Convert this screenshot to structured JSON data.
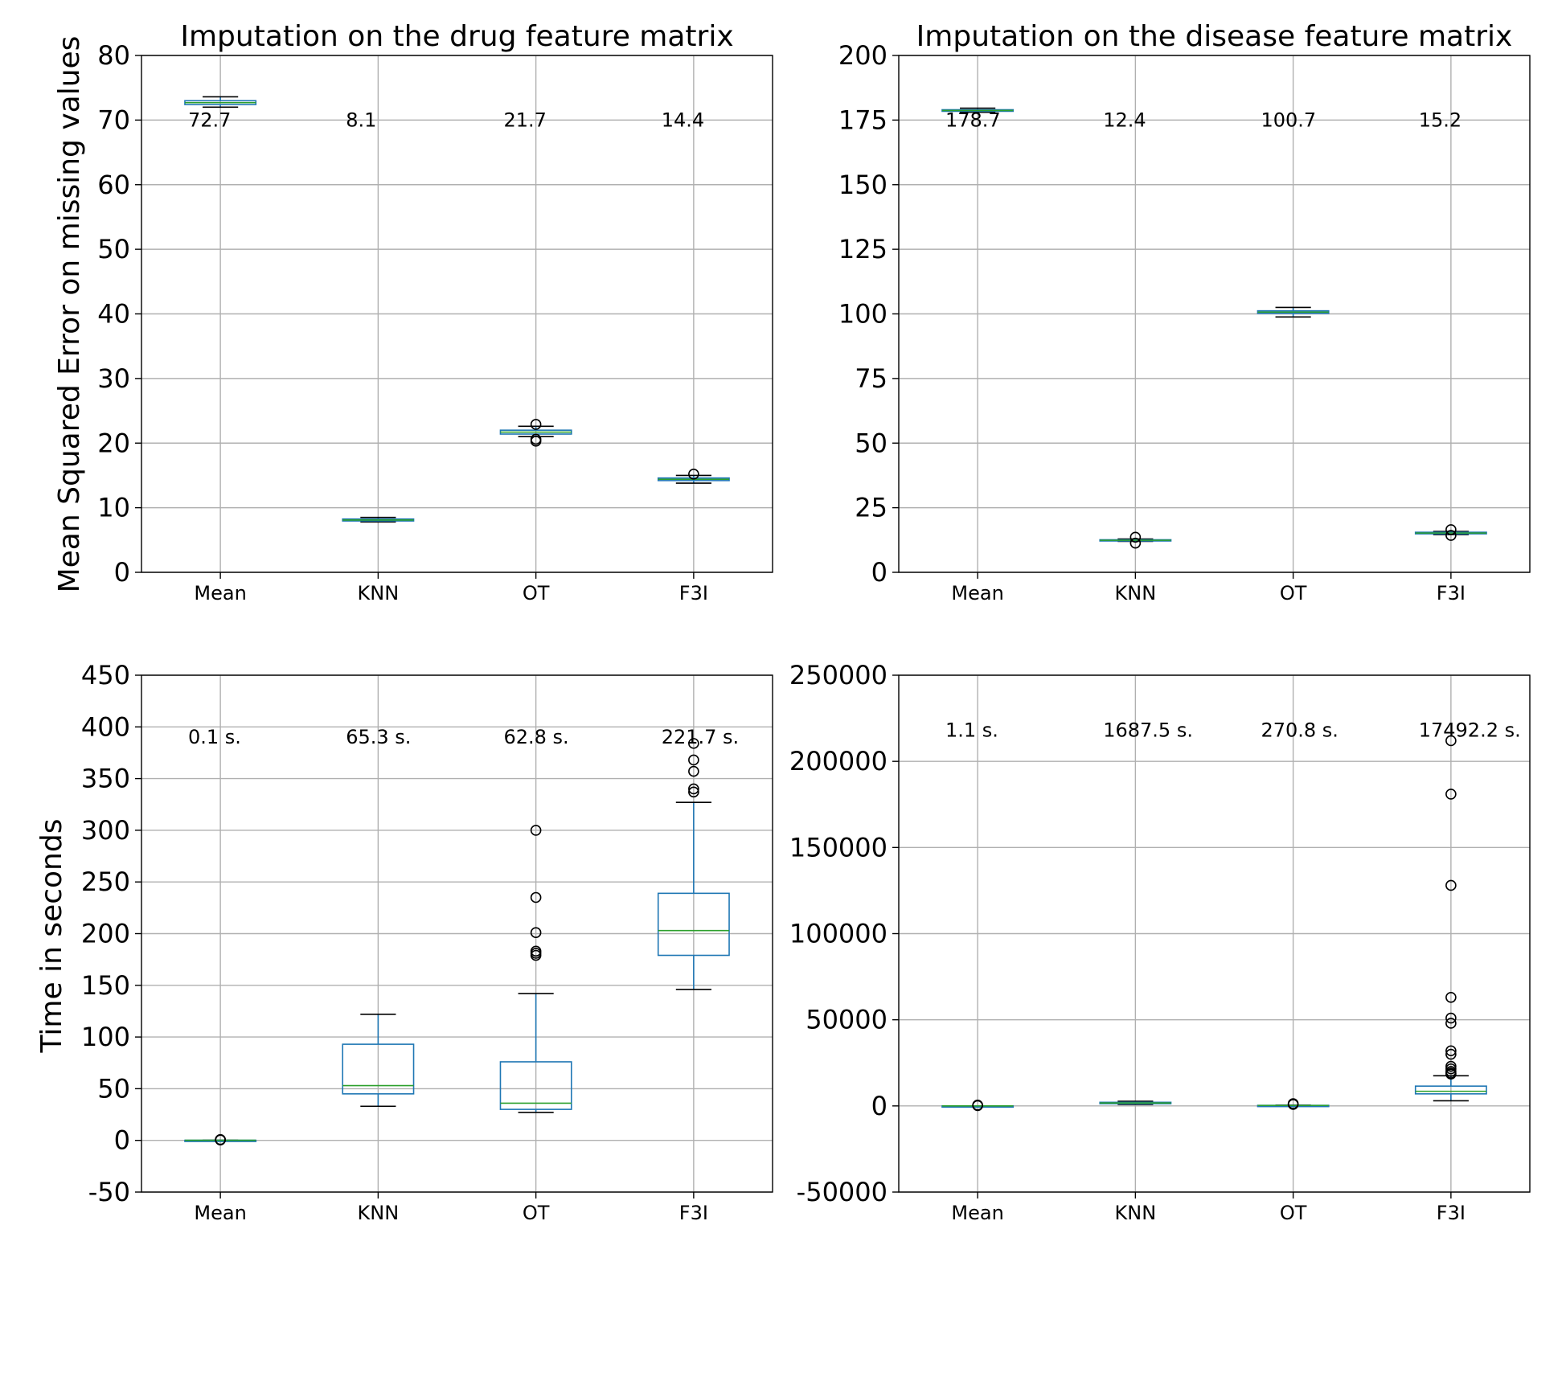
{
  "figure": {
    "ylabel_top": "Mean Squared Error on missing values",
    "ylabel_bottom": "Time in seconds"
  },
  "chart_data": [
    {
      "type": "box",
      "title": "Imputation on the drug feature matrix",
      "xlabel": "",
      "ylabel": "Mean Squared Error on missing values",
      "categories": [
        "Mean",
        "KNN",
        "OT",
        "F3I"
      ],
      "ylim": [
        0,
        80
      ],
      "yticks": [
        0,
        10,
        20,
        30,
        40,
        50,
        60,
        70,
        80
      ],
      "ytick_labels": [
        "0",
        "10",
        "20",
        "30",
        "40",
        "50",
        "60",
        "70",
        "80"
      ],
      "grid": true,
      "annotation_y": 70,
      "annotations": [
        "72.7",
        "8.1",
        "21.7",
        "14.4"
      ],
      "boxes": [
        {
          "whislo": 72.0,
          "q1": 72.4,
          "med": 72.7,
          "q3": 73.0,
          "whishi": 73.6,
          "fliers": []
        },
        {
          "whislo": 7.8,
          "q1": 7.95,
          "med": 8.1,
          "q3": 8.25,
          "whishi": 8.5,
          "fliers": []
        },
        {
          "whislo": 21.0,
          "q1": 21.4,
          "med": 21.7,
          "q3": 22.0,
          "whishi": 22.6,
          "fliers": [
            22.9,
            20.6,
            20.3
          ]
        },
        {
          "whislo": 13.8,
          "q1": 14.2,
          "med": 14.4,
          "q3": 14.6,
          "whishi": 15.0,
          "fliers": [
            15.2
          ]
        }
      ]
    },
    {
      "type": "box",
      "title": "Imputation on the disease feature matrix",
      "xlabel": "",
      "ylabel": "",
      "categories": [
        "Mean",
        "KNN",
        "OT",
        "F3I"
      ],
      "ylim": [
        0,
        200
      ],
      "yticks": [
        0,
        25,
        50,
        75,
        100,
        125,
        150,
        175,
        200
      ],
      "ytick_labels": [
        "0",
        "25",
        "50",
        "75",
        "100",
        "125",
        "150",
        "175",
        "200"
      ],
      "grid": true,
      "annotation_y": 175,
      "annotations": [
        "178.7",
        "12.4",
        "100.7",
        "15.2"
      ],
      "boxes": [
        {
          "whislo": 178.0,
          "q1": 178.4,
          "med": 178.7,
          "q3": 179.0,
          "whishi": 179.6,
          "fliers": []
        },
        {
          "whislo": 12.0,
          "q1": 12.2,
          "med": 12.4,
          "q3": 12.6,
          "whishi": 12.9,
          "fliers": [
            13.6,
            11.3
          ]
        },
        {
          "whislo": 98.8,
          "q1": 100.2,
          "med": 100.7,
          "q3": 101.2,
          "whishi": 102.5,
          "fliers": []
        },
        {
          "whislo": 14.6,
          "q1": 14.9,
          "med": 15.2,
          "q3": 15.5,
          "whishi": 15.8,
          "fliers": [
            16.5,
            14.3
          ]
        }
      ]
    },
    {
      "type": "box",
      "title": "",
      "xlabel": "",
      "ylabel": "Time in seconds",
      "categories": [
        "Mean",
        "KNN",
        "OT",
        "F3I"
      ],
      "ylim": [
        -50,
        450
      ],
      "yticks": [
        -50,
        0,
        50,
        100,
        150,
        200,
        250,
        300,
        350,
        400,
        450
      ],
      "ytick_labels": [
        "-50",
        "0",
        "50",
        "100",
        "150",
        "200",
        "250",
        "300",
        "350",
        "400",
        "450"
      ],
      "grid": true,
      "annotation_y": 390,
      "annotations": [
        "0.1 s.",
        "65.3 s.",
        "62.8 s.",
        "221.7 s."
      ],
      "boxes": [
        {
          "whislo": 0.05,
          "q1": 0.08,
          "med": 0.1,
          "q3": 0.12,
          "whishi": 0.15,
          "fliers": [
            0.4,
            0.6,
            0.8
          ]
        },
        {
          "whislo": 33,
          "q1": 45,
          "med": 53,
          "q3": 93,
          "whishi": 122,
          "fliers": []
        },
        {
          "whislo": 27,
          "q1": 30,
          "med": 36,
          "q3": 76,
          "whishi": 142,
          "fliers": [
            300,
            235,
            201,
            183,
            181,
            179
          ]
        },
        {
          "whislo": 146,
          "q1": 179,
          "med": 203,
          "q3": 239,
          "whishi": 327,
          "fliers": [
            384,
            368,
            357,
            340,
            337
          ]
        }
      ]
    },
    {
      "type": "box",
      "title": "",
      "xlabel": "",
      "ylabel": "",
      "categories": [
        "Mean",
        "KNN",
        "OT",
        "F3I"
      ],
      "ylim": [
        -50000,
        250000
      ],
      "yticks": [
        -50000,
        0,
        50000,
        100000,
        150000,
        200000,
        250000
      ],
      "ytick_labels": [
        "-50000",
        "0",
        "50000",
        "100000",
        "150000",
        "200000",
        "250000"
      ],
      "grid": true,
      "annotation_y": 218000,
      "annotations": [
        "1.1 s.",
        "1687.5 s.",
        "270.8 s.",
        "17492.2 s."
      ],
      "boxes": [
        {
          "whislo": 0.8,
          "q1": 1.0,
          "med": 1.1,
          "q3": 1.2,
          "whishi": 1.5,
          "fliers": [
            200,
            500
          ]
        },
        {
          "whislo": 900,
          "q1": 1300,
          "med": 1687.5,
          "q3": 2100,
          "whishi": 2700,
          "fliers": []
        },
        {
          "whislo": 150,
          "q1": 220,
          "med": 270.8,
          "q3": 330,
          "whishi": 420,
          "fliers": [
            900,
            1300
          ]
        },
        {
          "whislo": 3000,
          "q1": 7000,
          "med": 8500,
          "q3": 11500,
          "whishi": 17500,
          "fliers": [
            212000,
            181000,
            128000,
            63000,
            51000,
            48000,
            32000,
            30000,
            23000,
            21500,
            20000,
            19000,
            18500
          ]
        }
      ]
    }
  ]
}
